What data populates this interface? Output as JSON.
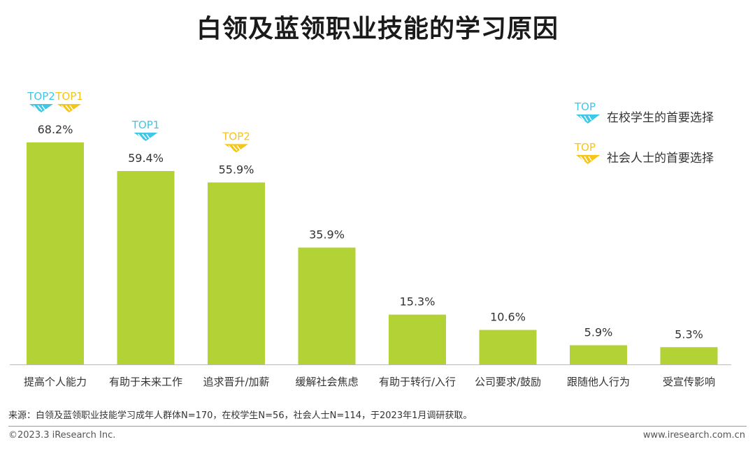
{
  "title": "白领及蓝领职业技能的学习原因",
  "colors": {
    "bar": "#b2d235",
    "student": "#3ec7e6",
    "social": "#f5c518",
    "axis": "#bbbbbb"
  },
  "legend": [
    {
      "badge": "TOP",
      "label": "在校学生的首要选择",
      "color_key": "student"
    },
    {
      "badge": "TOP",
      "label": "社会人士的首要选择",
      "color_key": "social"
    }
  ],
  "chart_data": {
    "type": "bar",
    "title": "白领及蓝领职业技能的学习原因",
    "xlabel": "",
    "ylabel": "",
    "ylim": [
      0,
      70
    ],
    "grid": false,
    "legend_position": "top-right",
    "categories": [
      "提高个人能力",
      "有助于未来工作",
      "追求晋升/加薪",
      "缓解社会焦虑",
      "有助于转行/入行",
      "公司要求/鼓励",
      "跟随他人行为",
      "受宣传影响"
    ],
    "values": [
      68.2,
      59.4,
      55.9,
      35.9,
      15.3,
      10.6,
      5.9,
      5.3
    ],
    "labels": [
      "68.2%",
      "59.4%",
      "55.9%",
      "35.9%",
      "15.3%",
      "10.6%",
      "5.9%",
      "5.3%"
    ],
    "annotations": [
      {
        "category_index": 0,
        "badges": [
          {
            "text": "TOP2",
            "group": "student"
          },
          {
            "text": "TOP1",
            "group": "social"
          }
        ]
      },
      {
        "category_index": 1,
        "badges": [
          {
            "text": "TOP1",
            "group": "student"
          }
        ]
      },
      {
        "category_index": 2,
        "badges": [
          {
            "text": "TOP2",
            "group": "social"
          }
        ]
      }
    ]
  },
  "footer": {
    "source": "来源：白领及蓝领职业技能学习成年人群体N=170，在校学生N=56，社会人士N=114，于2023年1月调研获取。",
    "copyright": "©2023.3 iResearch Inc.",
    "url": "www.iresearch.com.cn"
  }
}
